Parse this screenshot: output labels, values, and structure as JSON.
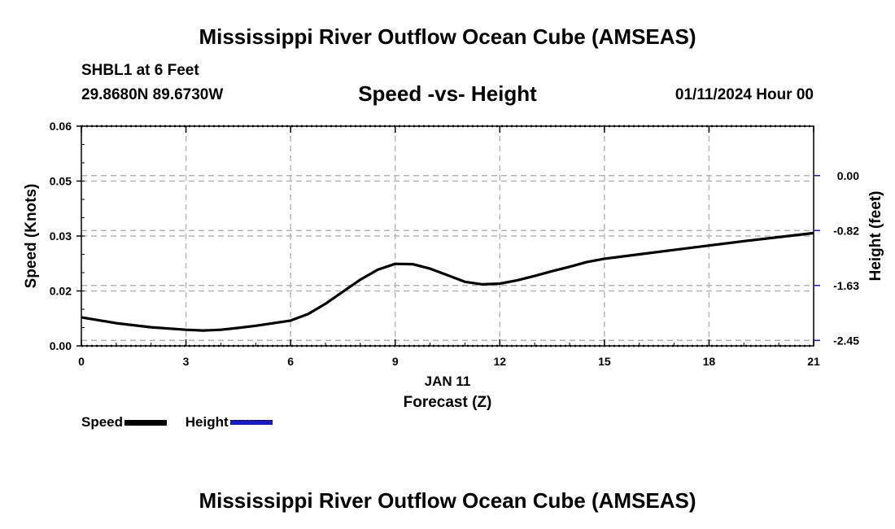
{
  "header": {
    "title": "Mississippi River Outflow Ocean Cube (AMSEAS)",
    "station": "SHBL1 at 6 Feet",
    "coords": "29.8680N  89.6730W",
    "subtitle": "Speed -vs- Height",
    "datetime": "01/11/2024 Hour 00"
  },
  "footer": {
    "title": "Mississippi River Outflow Ocean Cube (AMSEAS)"
  },
  "legend": {
    "speed_label": "Speed",
    "height_label": "Height"
  },
  "colors": {
    "speed": "#000000",
    "height": "#1a1acc",
    "grid": "#b4b4b4"
  },
  "chart_data": {
    "type": "line",
    "title": "Speed -vs- Height",
    "xlabel": "Forecast (Z)",
    "xlabel_date": "JAN 11",
    "ylabel": "Speed (Knots)",
    "ylabel_right": "Height (feet)",
    "xlim": [
      0,
      21
    ],
    "ylim": [
      0,
      0.06
    ],
    "x_ticks": [
      0,
      3,
      6,
      9,
      12,
      15,
      18,
      21
    ],
    "x_tick_labels": [
      "0",
      "3",
      "6",
      "9",
      "12",
      "15",
      "18",
      "21"
    ],
    "y_ticks": [
      0,
      0.015,
      0.03,
      0.045,
      0.06
    ],
    "y_tick_labels": [
      "0.00",
      "0.02",
      "0.03",
      "0.05",
      "0.06"
    ],
    "y2_ticks": [
      0.0015,
      0.0165,
      0.0315,
      0.0465
    ],
    "y2_tick_labels": [
      "-2.45",
      "-1.63",
      "-0.82",
      "0.00"
    ],
    "series": [
      {
        "name": "Speed",
        "x": [
          0,
          1,
          2,
          3,
          3.5,
          4,
          4.5,
          5,
          6,
          6.5,
          7,
          7.5,
          8,
          8.5,
          9,
          9.5,
          10,
          10.5,
          11,
          11.5,
          12,
          12.5,
          13,
          13.5,
          14,
          14.5,
          15,
          16,
          17,
          18,
          19,
          20,
          21
        ],
        "values": [
          0.0078,
          0.0062,
          0.0051,
          0.0044,
          0.0042,
          0.0044,
          0.0049,
          0.0055,
          0.0069,
          0.0087,
          0.0115,
          0.0148,
          0.0181,
          0.0208,
          0.0224,
          0.0223,
          0.0211,
          0.0193,
          0.0175,
          0.0168,
          0.017,
          0.0179,
          0.0191,
          0.0204,
          0.0216,
          0.0229,
          0.0238,
          0.025,
          0.0262,
          0.0274,
          0.0286,
          0.0297,
          0.0308
        ]
      },
      {
        "name": "Height",
        "x": [],
        "values": []
      }
    ]
  }
}
